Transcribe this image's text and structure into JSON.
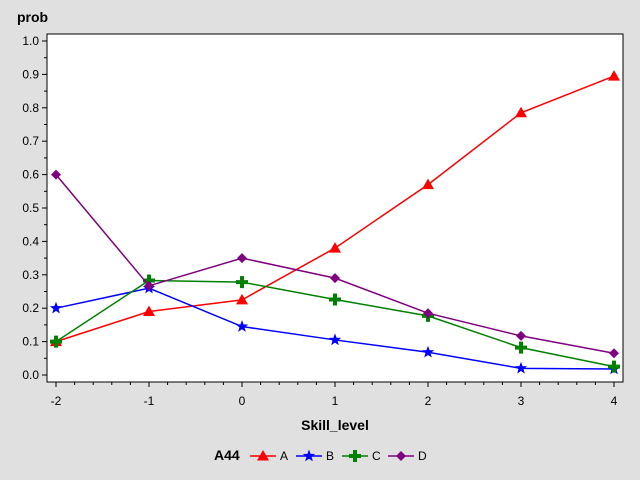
{
  "chart_data": {
    "type": "line",
    "xlabel": "Skill_level",
    "ylabel": "prob",
    "x": [
      -2,
      -1,
      0,
      1,
      2,
      3,
      4
    ],
    "xlim": [
      -2,
      4
    ],
    "ylim": [
      0,
      1
    ],
    "x_ticks": [
      "-2",
      "-1",
      "0",
      "1",
      "2",
      "3",
      "4"
    ],
    "y_ticks": [
      "0.0",
      "0.1",
      "0.2",
      "0.3",
      "0.4",
      "0.5",
      "0.6",
      "0.7",
      "0.8",
      "0.9",
      "1.0"
    ],
    "grid": false,
    "legend_title": "A44",
    "legend_position": "bottom",
    "series": [
      {
        "name": "A",
        "color": "#ff0000",
        "marker": "triangle",
        "values": [
          0.1,
          0.19,
          0.225,
          0.38,
          0.57,
          0.785,
          0.895
        ]
      },
      {
        "name": "B",
        "color": "#0000ff",
        "marker": "star",
        "values": [
          0.2,
          0.26,
          0.145,
          0.105,
          0.068,
          0.02,
          0.018
        ]
      },
      {
        "name": "C",
        "color": "#008000",
        "marker": "plus",
        "values": [
          0.1,
          0.283,
          0.278,
          0.226,
          0.177,
          0.082,
          0.025
        ]
      },
      {
        "name": "D",
        "color": "#800080",
        "marker": "diamond",
        "values": [
          0.6,
          0.267,
          0.35,
          0.29,
          0.185,
          0.117,
          0.065
        ]
      }
    ]
  }
}
